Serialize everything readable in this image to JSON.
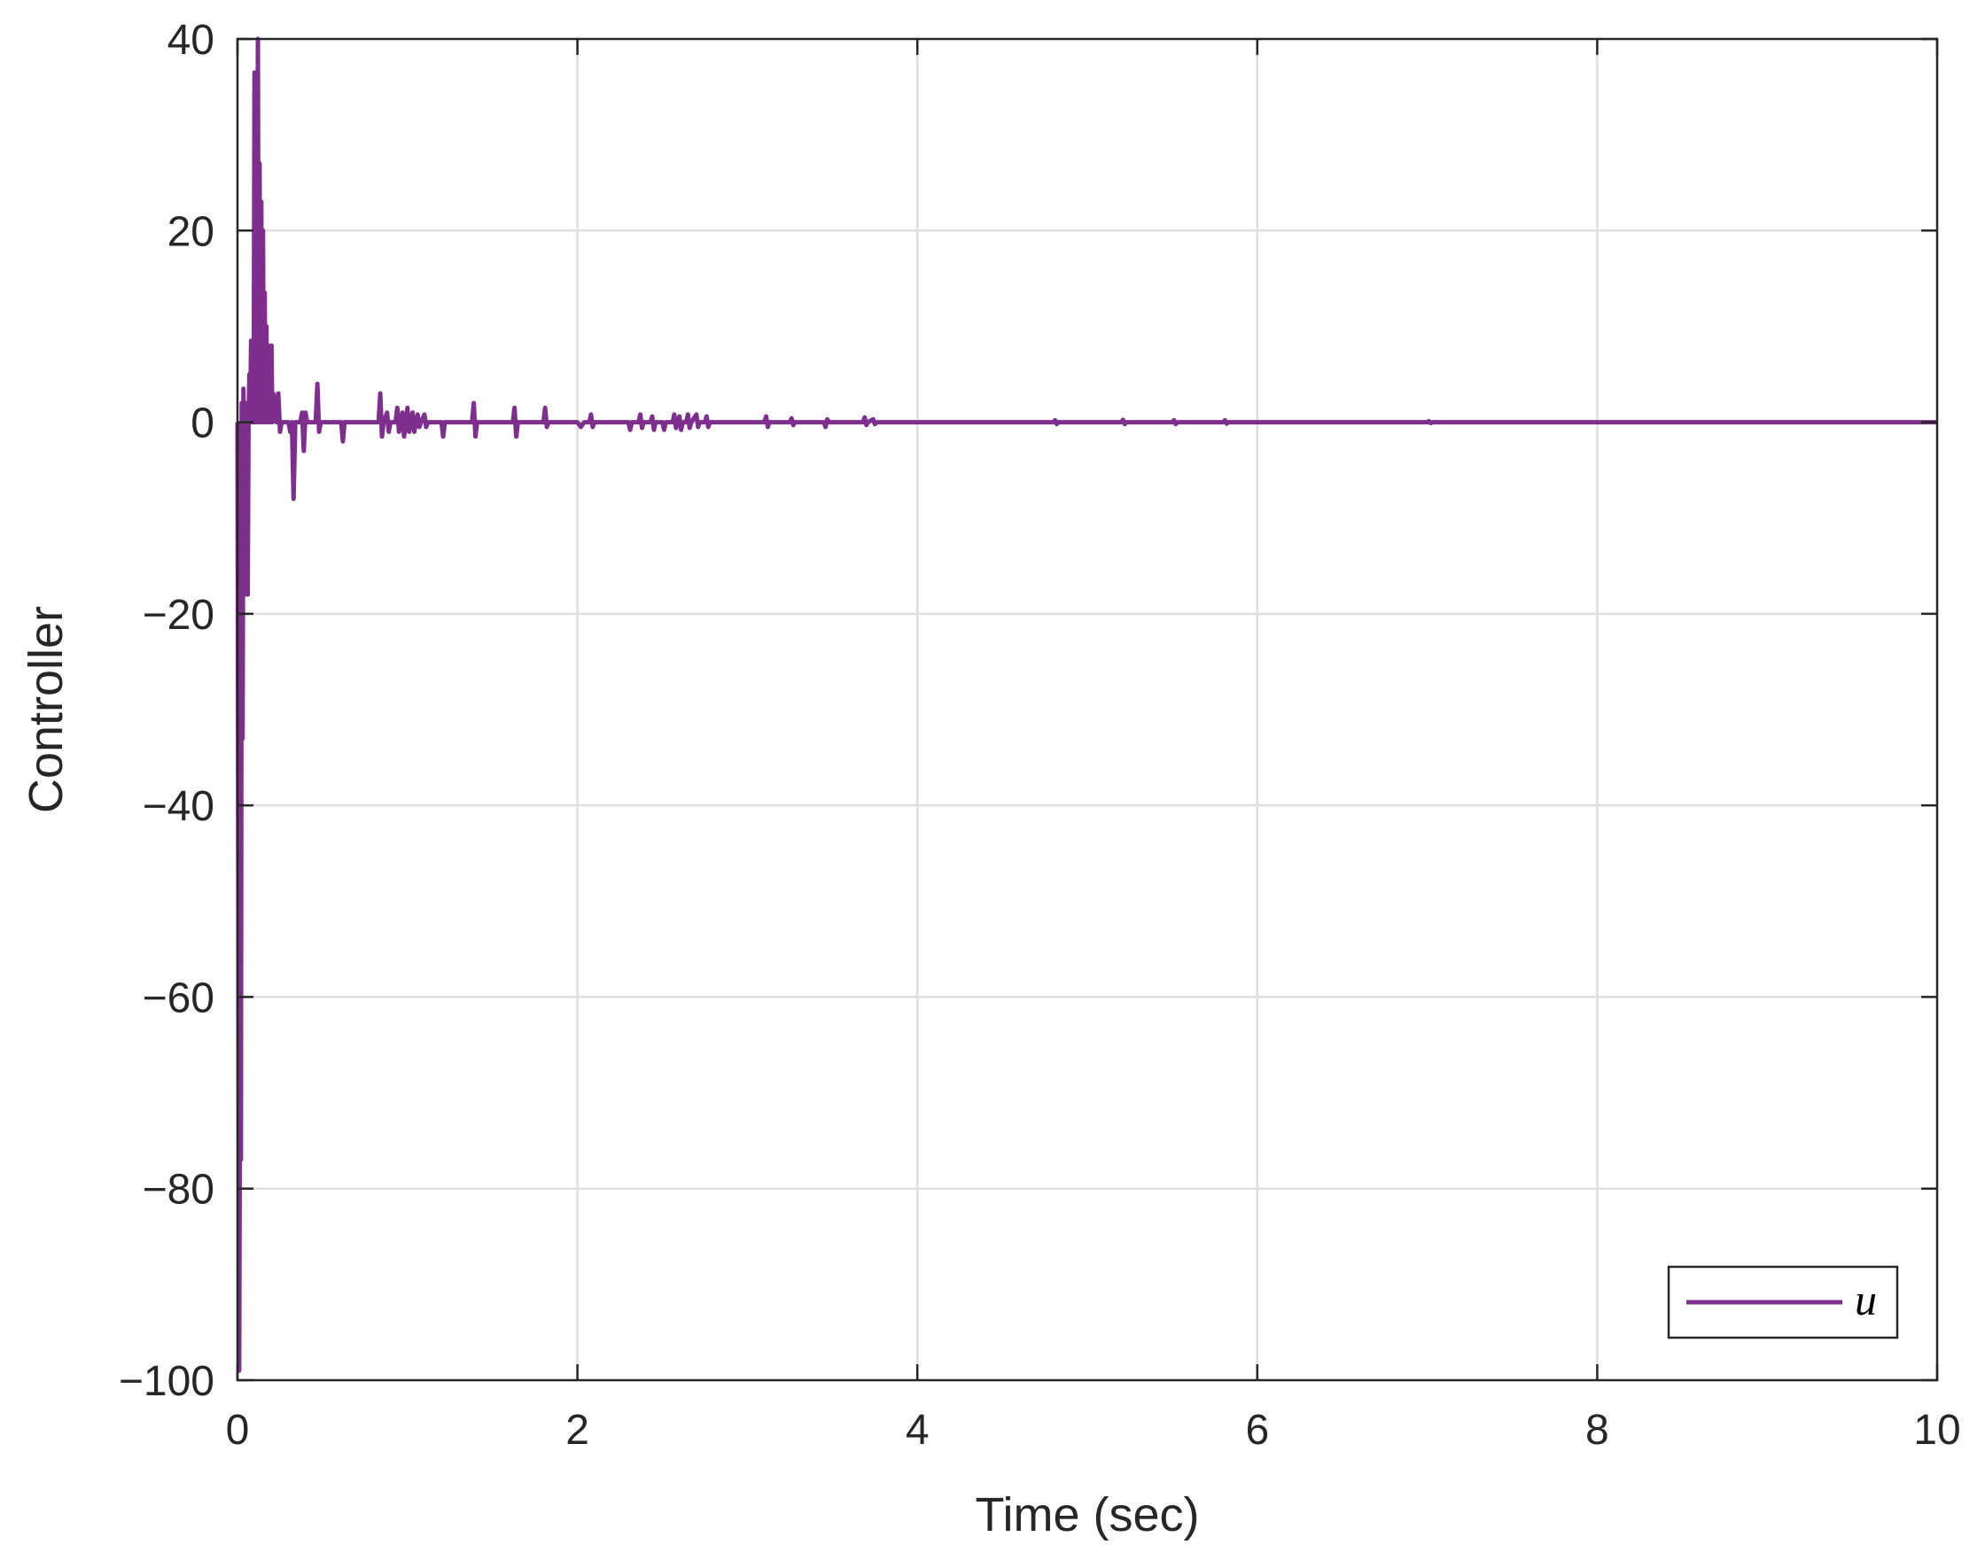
{
  "chart_data": {
    "type": "line",
    "title": "",
    "xlabel": "Time (sec)",
    "ylabel": "Controller",
    "xlim": [
      0,
      10
    ],
    "ylim": [
      -100,
      40
    ],
    "x_ticks": [
      0,
      2,
      4,
      6,
      8,
      10
    ],
    "y_ticks": [
      -100,
      -80,
      -60,
      -40,
      -20,
      0,
      20,
      40
    ],
    "x_tick_labels": [
      "0",
      "2",
      "4",
      "6",
      "8",
      "10"
    ],
    "y_tick_labels": [
      "−100",
      "−80",
      "−60",
      "−40",
      "−20",
      "0",
      "20",
      "40"
    ],
    "grid": true,
    "legend": {
      "position": "bottom-right",
      "entries": [
        "u"
      ]
    },
    "series": [
      {
        "name": "u",
        "color": "#7E2F8E",
        "points": [
          [
            0,
            0
          ],
          [
            0.01,
            -99
          ],
          [
            0.015,
            -66
          ],
          [
            0.02,
            -77
          ],
          [
            0.025,
            2
          ],
          [
            0.03,
            -33
          ],
          [
            0.035,
            3.5
          ],
          [
            0.04,
            -18
          ],
          [
            0.045,
            1
          ],
          [
            0.05,
            -15
          ],
          [
            0.055,
            2
          ],
          [
            0.06,
            -18
          ],
          [
            0.065,
            0
          ],
          [
            0.07,
            5
          ],
          [
            0.075,
            0
          ],
          [
            0.08,
            8.5
          ],
          [
            0.085,
            0
          ],
          [
            0.09,
            6
          ],
          [
            0.095,
            0
          ],
          [
            0.1,
            36.5
          ],
          [
            0.105,
            0
          ],
          [
            0.11,
            30
          ],
          [
            0.115,
            0
          ],
          [
            0.12,
            40
          ],
          [
            0.125,
            0
          ],
          [
            0.13,
            27
          ],
          [
            0.135,
            0
          ],
          [
            0.14,
            23
          ],
          [
            0.145,
            0
          ],
          [
            0.15,
            20
          ],
          [
            0.155,
            0
          ],
          [
            0.16,
            13.5
          ],
          [
            0.165,
            0
          ],
          [
            0.17,
            10
          ],
          [
            0.175,
            0
          ],
          [
            0.18,
            8
          ],
          [
            0.185,
            0
          ],
          [
            0.19,
            6
          ],
          [
            0.195,
            0
          ],
          [
            0.2,
            8
          ],
          [
            0.205,
            0
          ],
          [
            0.21,
            3
          ],
          [
            0.22,
            2.5
          ],
          [
            0.23,
            0
          ],
          [
            0.24,
            3
          ],
          [
            0.25,
            -1
          ],
          [
            0.26,
            0
          ],
          [
            0.3,
            0
          ],
          [
            0.31,
            -1
          ],
          [
            0.32,
            0
          ],
          [
            0.33,
            -8
          ],
          [
            0.34,
            0
          ],
          [
            0.37,
            0
          ],
          [
            0.38,
            1
          ],
          [
            0.39,
            -3
          ],
          [
            0.4,
            1
          ],
          [
            0.41,
            0
          ],
          [
            0.46,
            0
          ],
          [
            0.47,
            4
          ],
          [
            0.48,
            -1
          ],
          [
            0.49,
            0
          ],
          [
            0.61,
            0
          ],
          [
            0.62,
            -2
          ],
          [
            0.63,
            0
          ],
          [
            0.83,
            0
          ],
          [
            0.84,
            3
          ],
          [
            0.85,
            -1.5
          ],
          [
            0.86,
            0
          ],
          [
            0.88,
            1
          ],
          [
            0.89,
            -1
          ],
          [
            0.9,
            0
          ],
          [
            0.93,
            0
          ],
          [
            0.94,
            1.5
          ],
          [
            0.95,
            -1
          ],
          [
            0.96,
            0
          ],
          [
            0.97,
            1
          ],
          [
            0.98,
            -1.5
          ],
          [
            0.99,
            0
          ],
          [
            1.0,
            1.5
          ],
          [
            1.01,
            -1
          ],
          [
            1.02,
            0
          ],
          [
            1.03,
            1
          ],
          [
            1.04,
            -1
          ],
          [
            1.05,
            0
          ],
          [
            1.06,
            0.8
          ],
          [
            1.07,
            -0.5
          ],
          [
            1.08,
            0
          ],
          [
            1.1,
            0.8
          ],
          [
            1.11,
            -0.5
          ],
          [
            1.12,
            0
          ],
          [
            1.2,
            0
          ],
          [
            1.21,
            -1.5
          ],
          [
            1.22,
            0
          ],
          [
            1.38,
            0
          ],
          [
            1.39,
            2
          ],
          [
            1.4,
            -1.5
          ],
          [
            1.41,
            0
          ],
          [
            1.62,
            0
          ],
          [
            1.63,
            1.5
          ],
          [
            1.64,
            -1.5
          ],
          [
            1.65,
            0
          ],
          [
            1.8,
            0
          ],
          [
            1.81,
            1.5
          ],
          [
            1.82,
            -0.5
          ],
          [
            1.83,
            0
          ],
          [
            2.0,
            0
          ],
          [
            2.02,
            -0.5
          ],
          [
            2.04,
            0
          ],
          [
            2.07,
            0
          ],
          [
            2.08,
            0.8
          ],
          [
            2.09,
            -0.5
          ],
          [
            2.1,
            0
          ],
          [
            2.2,
            0
          ],
          [
            2.3,
            0
          ],
          [
            2.31,
            -0.8
          ],
          [
            2.32,
            0
          ],
          [
            2.36,
            0
          ],
          [
            2.37,
            0.8
          ],
          [
            2.38,
            -0.6
          ],
          [
            2.39,
            0
          ],
          [
            2.43,
            0
          ],
          [
            2.44,
            0.6
          ],
          [
            2.45,
            -0.8
          ],
          [
            2.46,
            0
          ],
          [
            2.5,
            0
          ],
          [
            2.51,
            -0.8
          ],
          [
            2.52,
            0
          ],
          [
            2.56,
            0
          ],
          [
            2.57,
            0.8
          ],
          [
            2.58,
            -0.6
          ],
          [
            2.59,
            0
          ],
          [
            2.6,
            0.6
          ],
          [
            2.61,
            -0.8
          ],
          [
            2.62,
            0
          ],
          [
            2.64,
            0
          ],
          [
            2.65,
            0.8
          ],
          [
            2.66,
            -0.6
          ],
          [
            2.67,
            0
          ],
          [
            2.7,
            0.8
          ],
          [
            2.71,
            -0.5
          ],
          [
            2.72,
            0
          ],
          [
            2.75,
            0
          ],
          [
            2.76,
            0.6
          ],
          [
            2.77,
            -0.5
          ],
          [
            2.78,
            0
          ],
          [
            3.1,
            0
          ],
          [
            3.11,
            0.6
          ],
          [
            3.12,
            -0.5
          ],
          [
            3.13,
            0
          ],
          [
            3.25,
            0
          ],
          [
            3.26,
            0.4
          ],
          [
            3.27,
            -0.3
          ],
          [
            3.28,
            0
          ],
          [
            3.45,
            0
          ],
          [
            3.46,
            -0.5
          ],
          [
            3.47,
            0.3
          ],
          [
            3.48,
            0
          ],
          [
            3.68,
            0
          ],
          [
            3.69,
            0.5
          ],
          [
            3.7,
            -0.3
          ],
          [
            3.71,
            0
          ],
          [
            3.74,
            0.3
          ],
          [
            3.75,
            -0.2
          ],
          [
            3.76,
            0
          ],
          [
            3.8,
            0
          ],
          [
            4.0,
            0
          ],
          [
            4.8,
            0
          ],
          [
            4.81,
            0.2
          ],
          [
            4.82,
            -0.2
          ],
          [
            4.83,
            0
          ],
          [
            5.0,
            0
          ],
          [
            5.2,
            0
          ],
          [
            5.21,
            0.25
          ],
          [
            5.22,
            -0.2
          ],
          [
            5.23,
            0
          ],
          [
            5.5,
            0
          ],
          [
            5.51,
            0.2
          ],
          [
            5.52,
            -0.2
          ],
          [
            5.53,
            0
          ],
          [
            5.8,
            0
          ],
          [
            5.81,
            0.2
          ],
          [
            5.82,
            -0.15
          ],
          [
            5.83,
            0
          ],
          [
            6.0,
            0
          ],
          [
            7.0,
            0
          ],
          [
            7.01,
            0.1
          ],
          [
            7.02,
            -0.1
          ],
          [
            7.03,
            0
          ],
          [
            8.0,
            0
          ],
          [
            9.0,
            0
          ],
          [
            10.0,
            0
          ]
        ]
      }
    ]
  }
}
